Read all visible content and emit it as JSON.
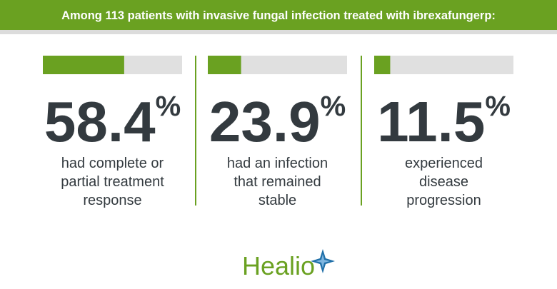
{
  "chart_data": {
    "type": "bar",
    "title": "Among 113 patients with invasive fungal infection treated with ibrexafungerp:",
    "categories": [
      [
        "had complete or",
        "partial treatment",
        "response"
      ],
      [
        "had an infection",
        "that remained",
        "stable"
      ],
      [
        "experienced",
        "disease",
        "progression"
      ]
    ],
    "values": [
      58.4,
      23.9,
      11.5
    ],
    "unit": "%",
    "color": "#6aa121",
    "xlim": [
      0,
      100
    ],
    "logo": "Healio"
  }
}
